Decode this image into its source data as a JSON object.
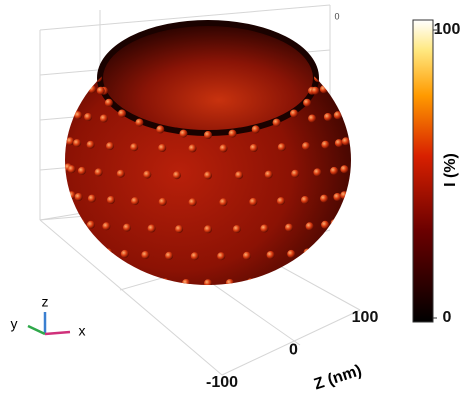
{
  "scene": {
    "top_tick": "0",
    "z_axis": {
      "label": "Z (nm)",
      "lim": [
        -100,
        100
      ],
      "ticks": [
        -100,
        0,
        100
      ]
    },
    "triad": {
      "x": "x",
      "y": "y",
      "z": "z"
    }
  },
  "colorbar": {
    "label": "I (%)",
    "lim": [
      0,
      100
    ],
    "ticks": [
      0,
      100
    ]
  }
}
